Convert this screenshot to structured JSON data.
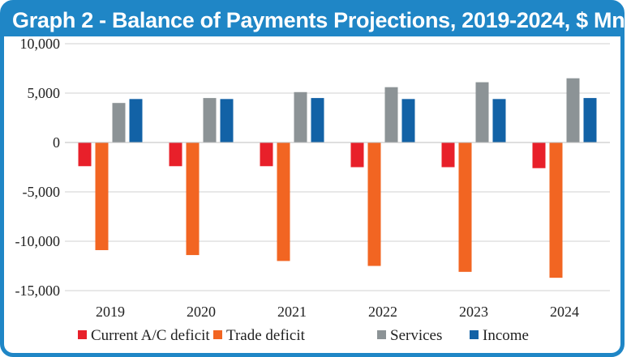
{
  "title": "Graph 2 - Balance of Payments Projections, 2019-2024, $ Mn.",
  "colors": {
    "frame": "#1f86c6",
    "grid": "#d0d0d0"
  },
  "chart_data": {
    "type": "bar",
    "title": "Graph 2 - Balance of Payments Projections, 2019-2024, $ Mn.",
    "categories": [
      "2019",
      "2020",
      "2021",
      "2022",
      "2023",
      "2024"
    ],
    "ylim": [
      -15000,
      10000
    ],
    "yticks": [
      10000,
      5000,
      0,
      -5000,
      -10000,
      -15000
    ],
    "ytick_labels": [
      "10,000",
      "5,000",
      "0",
      "-5,000",
      "-10,000",
      "-15,000"
    ],
    "grid": true,
    "legend_position": "bottom",
    "series": [
      {
        "name": "Current A/C deficit",
        "color": "#e8202a",
        "values": [
          -2400,
          -2400,
          -2400,
          -2500,
          -2500,
          -2600
        ]
      },
      {
        "name": "Trade deficit",
        "color": "#f26522",
        "values": [
          -10900,
          -11400,
          -12000,
          -12500,
          -13100,
          -13700
        ]
      },
      {
        "name": "Services",
        "color": "#8c9396",
        "values": [
          4000,
          4500,
          5100,
          5600,
          6100,
          6500
        ]
      },
      {
        "name": "Income",
        "color": "#1262a6",
        "values": [
          4400,
          4400,
          4500,
          4400,
          4400,
          4500
        ]
      }
    ]
  }
}
